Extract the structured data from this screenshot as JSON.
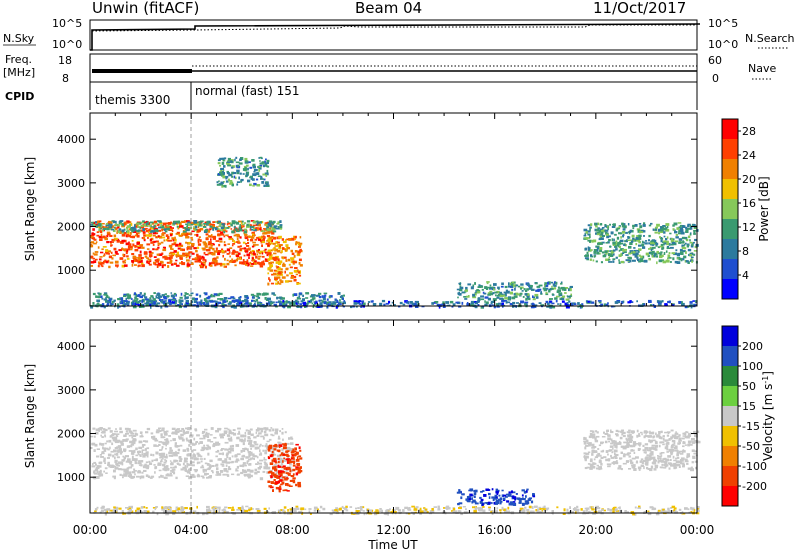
{
  "header": {
    "station": "Unwin (fitACF)",
    "beam": "Beam 04",
    "date": "11/Oct/2017"
  },
  "top_panels": {
    "nsky_label": "N.Sky",
    "nsky_ticks": [
      "10^5",
      "10^0"
    ],
    "nsearch_label": "N.Search",
    "freq_label_1": "Freq.",
    "freq_label_2": "[MHz]",
    "freq_ticks": [
      "18",
      "8"
    ],
    "nave_label": "Nave",
    "nave_ticks": [
      "60",
      "0"
    ],
    "cpid_label": "CPID",
    "cpid_modes": [
      "themis 3300",
      "normal (fast) 151"
    ]
  },
  "colors": {
    "power_scale": [
      "#0000ff",
      "#1f4fd0",
      "#2c7a9e",
      "#3a9a70",
      "#86c85a",
      "#f0c000",
      "#f08000",
      "#ff4000",
      "#ff0000"
    ],
    "velocity_scale": [
      "#0000dc",
      "#2050c0",
      "#2a8a3a",
      "#6cd040",
      "#c8c8c8",
      "#f0c000",
      "#f08000",
      "#f04000",
      "#ff0000"
    ]
  },
  "chart_data": [
    {
      "type": "heatmap",
      "name": "power",
      "xlabel": "Time UT",
      "ylabel": "Slant Range [km]",
      "xlim": [
        0,
        24
      ],
      "ylim": [
        180,
        4600
      ],
      "x_ticks": [
        "00:00",
        "04:00",
        "08:00",
        "12:00",
        "16:00",
        "20:00",
        "00:00"
      ],
      "y_ticks": [
        1000,
        2000,
        3000,
        4000
      ],
      "colorbar_label": "Power [dB]",
      "colorbar_ticks": [
        4,
        8,
        12,
        16,
        20,
        24,
        28
      ],
      "colorbar_range": [
        0,
        30
      ],
      "regions": [
        {
          "t": [
            0.0,
            7.2
          ],
          "r": [
            1100,
            2150
          ],
          "level": 25
        },
        {
          "t": [
            0.0,
            7.5
          ],
          "r": [
            1900,
            2150
          ],
          "level": 12
        },
        {
          "t": [
            7.0,
            8.3
          ],
          "r": [
            700,
            1800
          ],
          "level": 22
        },
        {
          "t": [
            0.0,
            10.0
          ],
          "r": [
            180,
            500
          ],
          "level": 8
        },
        {
          "t": [
            14.5,
            19.0
          ],
          "r": [
            350,
            750
          ],
          "level": 10
        },
        {
          "t": [
            19.5,
            24.0
          ],
          "r": [
            1200,
            2100
          ],
          "level": 11
        },
        {
          "t": [
            5.0,
            7.0
          ],
          "r": [
            2950,
            3600
          ],
          "level": 10
        },
        {
          "t": [
            0.0,
            24.0
          ],
          "r": [
            180,
            320
          ],
          "level": 6
        }
      ]
    },
    {
      "type": "heatmap",
      "name": "velocity",
      "xlabel": "Time UT",
      "ylabel": "Slant Range [km]",
      "xlim": [
        0,
        24
      ],
      "ylim": [
        180,
        4600
      ],
      "x_ticks": [
        "00:00",
        "04:00",
        "08:00",
        "12:00",
        "16:00",
        "20:00",
        "00:00"
      ],
      "y_ticks": [
        1000,
        2000,
        3000,
        4000
      ],
      "colorbar_label": "Velocity [m s^-1]",
      "colorbar_ticks": [
        200,
        100,
        50,
        15,
        -15,
        -50,
        -100,
        -200
      ],
      "colorbar_range": [
        -250,
        250
      ],
      "regions": [
        {
          "t": [
            0.0,
            8.0
          ],
          "r": [
            1000,
            2150
          ],
          "level": 0
        },
        {
          "t": [
            7.0,
            8.3
          ],
          "r": [
            700,
            1800
          ],
          "level": -200
        },
        {
          "t": [
            14.5,
            17.5
          ],
          "r": [
            400,
            750
          ],
          "level": 200
        },
        {
          "t": [
            19.5,
            24.0
          ],
          "r": [
            1200,
            2100
          ],
          "level": 0
        },
        {
          "t": [
            0.0,
            24.0
          ],
          "r": [
            180,
            350
          ],
          "level": -20
        }
      ]
    }
  ]
}
